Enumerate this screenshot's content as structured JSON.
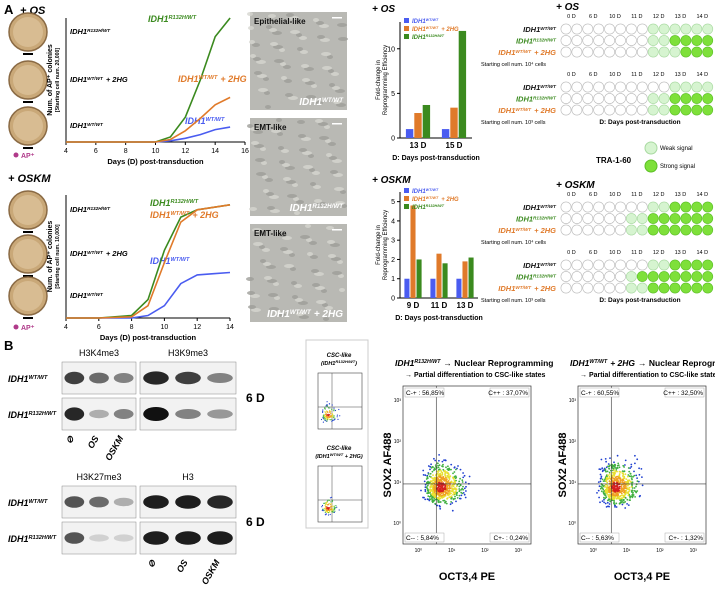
{
  "genotypes": [
    {
      "gene": "IDH1",
      "sup": "WT/WT"
    },
    {
      "gene": "IDH1",
      "sup": "R132H/WT"
    },
    {
      "gene": "IDH1",
      "sup": "WT/WT",
      "suffix": "+ 2HG"
    }
  ],
  "panel_a": {
    "label": "A",
    "os": {
      "heading": "+ OS",
      "colonies": {
        "type": "line",
        "ylabel": [
          "Num. of AP⁺ colonies",
          "[Starting cell num. 20,000]"
        ],
        "xlabel": "Days (D) post-transduction",
        "x": [
          4,
          6,
          8,
          10,
          11,
          12,
          13,
          14,
          15
        ],
        "xlim": [
          4,
          16
        ],
        "xticks": [
          4,
          6,
          8,
          10,
          12,
          14,
          16
        ],
        "ylim": [
          0,
          100
        ],
        "series": [
          {
            "color": "#4a5cf0",
            "values": [
              0,
              0,
              0,
              0,
              1,
              3,
              6,
              10,
              12
            ]
          },
          {
            "color": "#3b8a1f",
            "values": [
              0,
              0,
              0,
              0,
              4,
              20,
              50,
              85,
              100
            ]
          },
          {
            "color": "#e07a2a",
            "values": [
              0,
              0,
              0,
              0,
              2,
              9,
              19,
              30,
              36
            ]
          }
        ]
      },
      "ap_legend": "AP⁺",
      "micrographs": [
        "Epithelial-like",
        "EMT-like",
        "EMT-like"
      ],
      "fold": {
        "type": "bar",
        "ylabel": [
          "Fold-change in",
          "Reprogramming Efficiency"
        ],
        "xlabel": "D: Days post-transduction",
        "categories": [
          "13 D",
          "15 D"
        ],
        "ylim": [
          0,
          13
        ],
        "yticks": [
          0,
          5,
          10
        ],
        "series": [
          {
            "color": "#4a5cf0",
            "values": [
              1,
              1
            ]
          },
          {
            "color": "#e07a2a",
            "values": [
              2.8,
              3.4
            ]
          },
          {
            "color": "#3b8a1f",
            "values": [
              3.7,
              12
            ]
          }
        ]
      },
      "grid": {
        "days": [
          "0 D",
          "6 D",
          "10 D",
          "11 D",
          "12 D",
          "13 D",
          "14 D"
        ],
        "xlabel": "D: Days post-transduction",
        "sets": [
          {
            "caption": "Starting cell num. 10⁴ cells",
            "rows": [
              [
                0,
                0,
                0,
                0,
                0,
                0,
                0,
                0,
                1,
                1,
                1,
                1,
                1,
                1
              ],
              [
                0,
                0,
                0,
                0,
                0,
                0,
                0,
                0,
                1,
                1,
                2,
                2,
                2,
                2
              ],
              [
                0,
                0,
                0,
                0,
                0,
                0,
                0,
                0,
                1,
                1,
                1,
                2,
                2,
                2
              ]
            ]
          },
          {
            "caption": "Starting cell num. 10³ cells",
            "rows": [
              [
                0,
                0,
                0,
                0,
                0,
                0,
                0,
                0,
                0,
                0,
                1,
                1,
                1,
                1
              ],
              [
                0,
                0,
                0,
                0,
                0,
                0,
                0,
                0,
                1,
                1,
                2,
                2,
                2,
                2
              ],
              [
                0,
                0,
                0,
                0,
                0,
                0,
                0,
                0,
                1,
                1,
                2,
                2,
                2,
                2
              ]
            ]
          }
        ]
      }
    },
    "legend": {
      "title": "TRA-1-60",
      "weak": "Weak signal",
      "strong": "Strong signal"
    },
    "oskm": {
      "heading": "+ OSKM",
      "colonies": {
        "type": "line",
        "ylabel": [
          "Num. of AP⁺ colonies",
          "[Starting cell num. 10,000]"
        ],
        "xlabel": "Days (D) post-transduction",
        "x": [
          4,
          6,
          8,
          9,
          10,
          11,
          12,
          13,
          14
        ],
        "xlim": [
          4,
          14
        ],
        "xticks": [
          4,
          6,
          8,
          10,
          12,
          14
        ],
        "ylim": [
          0,
          100
        ],
        "series": [
          {
            "color": "#4a5cf0",
            "values": [
              0,
              0,
              0,
              2,
              10,
              28,
              35,
              36,
              37
            ]
          },
          {
            "color": "#3b8a1f",
            "values": [
              0,
              0,
              2,
              15,
              55,
              82,
              88,
              90,
              92
            ]
          },
          {
            "color": "#e07a2a",
            "values": [
              0,
              0,
              1,
              10,
              45,
              78,
              88,
              90,
              92
            ]
          }
        ]
      },
      "ap_legend": "AP⁺",
      "fold": {
        "type": "bar",
        "ylabel": [
          "Fold-change in",
          "Reprogramming Efficiency"
        ],
        "xlabel": "D: Days post-transduction",
        "categories": [
          "9 D",
          "11 D",
          "13 D"
        ],
        "ylim": [
          0,
          5.5
        ],
        "yticks": [
          0,
          1,
          2,
          3,
          4,
          5
        ],
        "series": [
          {
            "color": "#4a5cf0",
            "values": [
              1,
              1,
              1
            ]
          },
          {
            "color": "#e07a2a",
            "values": [
              4.8,
              2.3,
              1.9
            ]
          },
          {
            "color": "#3b8a1f",
            "values": [
              2,
              1.8,
              2.1
            ]
          }
        ]
      },
      "grid": {
        "days": [
          "0 D",
          "6 D",
          "10 D",
          "11 D",
          "12 D",
          "13 D",
          "14 D"
        ],
        "xlabel": "D: Days post-transduction",
        "sets": [
          {
            "caption": "Starting cell num. 10⁴ cells",
            "rows": [
              [
                0,
                0,
                0,
                0,
                0,
                0,
                0,
                0,
                1,
                1,
                2,
                2,
                2,
                2
              ],
              [
                0,
                0,
                0,
                0,
                0,
                0,
                1,
                1,
                2,
                2,
                2,
                2,
                2,
                2
              ],
              [
                0,
                0,
                0,
                0,
                0,
                0,
                1,
                1,
                2,
                2,
                2,
                2,
                2,
                2
              ]
            ]
          },
          {
            "caption": "Starting cell num. 10³ cells",
            "rows": [
              [
                0,
                0,
                0,
                0,
                0,
                0,
                0,
                0,
                1,
                1,
                2,
                2,
                2,
                2
              ],
              [
                0,
                0,
                0,
                0,
                0,
                0,
                1,
                2,
                2,
                2,
                2,
                2,
                2,
                2
              ],
              [
                0,
                0,
                0,
                0,
                0,
                0,
                1,
                1,
                2,
                2,
                2,
                2,
                2,
                2
              ]
            ]
          }
        ]
      }
    }
  },
  "panel_b": {
    "label": "B",
    "blots": [
      {
        "marks": [
          "H3K4me3",
          "H3K9me3"
        ]
      },
      {
        "marks": [
          "H3K27me3",
          "H3"
        ]
      }
    ],
    "timepoint": "6 D",
    "lanes": [
      "⊘",
      "OS",
      "OSKM"
    ],
    "flow_small": [
      {
        "title": "CSC-like",
        "pre": "(IDH1",
        "sup": "R132H/WT",
        "post": ")"
      },
      {
        "title": "CSC-like",
        "pre": "(IDH1",
        "sup": "WT/WT",
        "post": " + 2HG)"
      }
    ],
    "flow": [
      {
        "rest": "→ Nuclear Reprogramming",
        "subtitle": "→ Partial differentiation to CSC-like states",
        "quadrants": [
          "C-+ : 56,85%",
          "C++ : 37,07%",
          "C-- : 5,84%",
          "C+- : 0,24%"
        ]
      },
      {
        "rest": "→ Nuclear Reprogramming",
        "subtitle": "→ Partial differentiation to CSC-like states",
        "quadrants": [
          "C-+ : 60,55%",
          "C++ : 32,50%",
          "C-- : 5,63%",
          "C+- : 1,32%"
        ]
      }
    ],
    "flow_ylabel": "SOX2 AF488",
    "flow_xlabel": "OCT3,4 PE",
    "flow_ticks": [
      "10⁰",
      "10¹",
      "10²",
      "10³"
    ]
  }
}
